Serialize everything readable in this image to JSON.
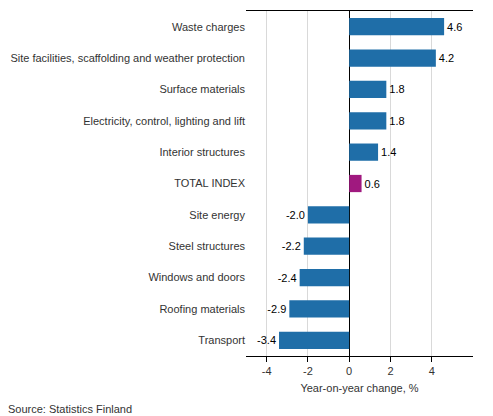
{
  "chart_data": {
    "type": "bar",
    "orientation": "horizontal",
    "categories": [
      "Waste charges",
      "Site facilities, scaffolding and weather protection",
      "Surface materials",
      "Electricity, control, lighting and lift",
      "Interior structures",
      "TOTAL INDEX",
      "Site energy",
      "Steel structures",
      "Windows and doors",
      "Roofing materials",
      "Transport"
    ],
    "values": [
      4.6,
      4.2,
      1.8,
      1.8,
      1.4,
      0.6,
      -2.0,
      -2.2,
      -2.4,
      -2.9,
      -3.4
    ],
    "value_labels": [
      "4.6",
      "4.2",
      "1.8",
      "1.8",
      "1.4",
      "0.6",
      "-2.0",
      "-2.2",
      "-2.4",
      "-2.9",
      "-3.4"
    ],
    "data_labels": true,
    "colors": [
      "#1f6ea8",
      "#1f6ea8",
      "#1f6ea8",
      "#1f6ea8",
      "#1f6ea8",
      "#a0197f",
      "#1f6ea8",
      "#1f6ea8",
      "#1f6ea8",
      "#1f6ea8",
      "#1f6ea8"
    ],
    "x_label": "Year-on-year change, %",
    "xlim": [
      -5,
      6
    ],
    "xticks": [
      -4,
      -2,
      0,
      2,
      4
    ],
    "grid": true,
    "source": "Source: Statistics Finland"
  }
}
